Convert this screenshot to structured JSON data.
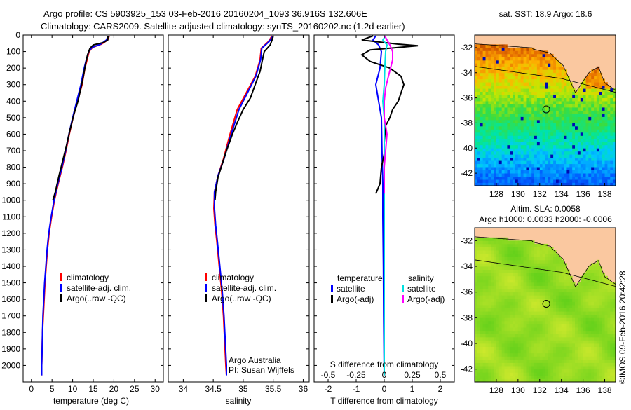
{
  "header": {
    "line1": "Argo profile: CS 5903925_153 03-Feb-2016 20160204_1093 36.916S 132.606E",
    "line2": "Climatology: CARS2009. Satellite-adjusted climatology: synTS_20160202.nc (1.2d earlier)"
  },
  "chart_data": [
    {
      "type": "line",
      "name": "temperature-profile",
      "xlabel": "temperature (deg C)",
      "xlim": [
        -2,
        32
      ],
      "xticks": [
        0,
        5,
        10,
        15,
        20,
        25,
        30
      ],
      "ylim": [
        0,
        2100
      ],
      "yticks": [
        0,
        100,
        200,
        300,
        400,
        500,
        600,
        700,
        800,
        900,
        1000,
        1100,
        1200,
        1300,
        1400,
        1500,
        1600,
        1700,
        1800,
        1900,
        2000
      ],
      "legend": [
        "climatology",
        "satellite-adj. clim.",
        "Argo(..raw -QC)"
      ],
      "colors": [
        "#ff0000",
        "#0000ff",
        "#000000"
      ],
      "series": [
        {
          "name": "climatology",
          "color": "#ff0000",
          "points": [
            [
              18.9,
              5
            ],
            [
              18.5,
              30
            ],
            [
              17.0,
              55
            ],
            [
              14.8,
              75
            ],
            [
              14.0,
              100
            ],
            [
              13.5,
              150
            ],
            [
              13.0,
              200
            ],
            [
              12.3,
              300
            ],
            [
              11.2,
              400
            ],
            [
              10.1,
              500
            ],
            [
              9.2,
              600
            ],
            [
              8.4,
              700
            ],
            [
              7.5,
              800
            ],
            [
              6.5,
              900
            ],
            [
              5.6,
              1000
            ],
            [
              4.9,
              1100
            ],
            [
              4.3,
              1200
            ],
            [
              3.9,
              1300
            ],
            [
              3.6,
              1400
            ],
            [
              3.3,
              1500
            ],
            [
              3.1,
              1600
            ],
            [
              2.9,
              1700
            ],
            [
              2.7,
              1800
            ],
            [
              2.6,
              1900
            ],
            [
              2.5,
              2000
            ],
            [
              2.5,
              2060
            ]
          ]
        },
        {
          "name": "satellite",
          "color": "#0000ff",
          "points": [
            [
              18.6,
              5
            ],
            [
              18.2,
              30
            ],
            [
              16.8,
              55
            ],
            [
              14.7,
              75
            ],
            [
              13.9,
              100
            ],
            [
              13.3,
              150
            ],
            [
              12.8,
              200
            ],
            [
              12.0,
              300
            ],
            [
              11.0,
              400
            ],
            [
              10.0,
              500
            ],
            [
              9.1,
              600
            ],
            [
              8.3,
              700
            ],
            [
              7.4,
              800
            ],
            [
              6.4,
              900
            ],
            [
              5.5,
              1000
            ],
            [
              4.8,
              1100
            ],
            [
              4.2,
              1200
            ],
            [
              3.8,
              1300
            ],
            [
              3.5,
              1400
            ],
            [
              3.2,
              1500
            ],
            [
              3.0,
              1600
            ],
            [
              2.8,
              1700
            ],
            [
              2.7,
              1800
            ],
            [
              2.6,
              1900
            ],
            [
              2.5,
              2000
            ],
            [
              2.5,
              2060
            ]
          ]
        },
        {
          "name": "argo",
          "color": "#000000",
          "points": [
            [
              18.6,
              5
            ],
            [
              18.5,
              30
            ],
            [
              17.5,
              45
            ],
            [
              15.0,
              60
            ],
            [
              14.2,
              80
            ],
            [
              13.6,
              120
            ],
            [
              13.1,
              180
            ],
            [
              12.6,
              250
            ],
            [
              12.0,
              320
            ],
            [
              11.3,
              400
            ],
            [
              10.3,
              480
            ],
            [
              9.3,
              580
            ],
            [
              8.4,
              680
            ],
            [
              7.6,
              760
            ],
            [
              6.7,
              850
            ],
            [
              5.8,
              950
            ],
            [
              5.2,
              1000
            ]
          ]
        }
      ]
    },
    {
      "type": "line",
      "name": "salinity-profile",
      "xlabel": "salinity",
      "xlim": [
        33.75,
        36.1
      ],
      "xticks": [
        34,
        34.5,
        35,
        35.5,
        36
      ],
      "ylim": [
        0,
        2100
      ],
      "legend": [
        "climatology",
        "satellite-adj. clim.",
        "Argo(..raw -QC)"
      ],
      "colors": [
        "#ff0000",
        "#0000ff",
        "#000000"
      ],
      "annotation": [
        "Argo Australia",
        "PI: Susan Wijffels"
      ],
      "series": [
        {
          "name": "climatology",
          "color": "#ff0000",
          "points": [
            [
              35.48,
              5
            ],
            [
              35.42,
              40
            ],
            [
              35.3,
              80
            ],
            [
              35.28,
              150
            ],
            [
              35.2,
              250
            ],
            [
              35.05,
              350
            ],
            [
              34.9,
              450
            ],
            [
              34.78,
              600
            ],
            [
              34.67,
              750
            ],
            [
              34.58,
              850
            ],
            [
              34.52,
              950
            ],
            [
              34.51,
              1050
            ],
            [
              34.53,
              1150
            ],
            [
              34.56,
              1250
            ],
            [
              34.6,
              1400
            ],
            [
              34.64,
              1550
            ],
            [
              34.67,
              1700
            ],
            [
              34.69,
              1850
            ],
            [
              34.71,
              2000
            ],
            [
              34.72,
              2060
            ]
          ]
        },
        {
          "name": "satellite",
          "color": "#0000ff",
          "points": [
            [
              35.5,
              5
            ],
            [
              35.43,
              40
            ],
            [
              35.31,
              80
            ],
            [
              35.29,
              150
            ],
            [
              35.21,
              250
            ],
            [
              35.07,
              350
            ],
            [
              34.93,
              450
            ],
            [
              34.8,
              600
            ],
            [
              34.68,
              750
            ],
            [
              34.58,
              850
            ],
            [
              34.52,
              950
            ],
            [
              34.52,
              1050
            ],
            [
              34.54,
              1150
            ],
            [
              34.57,
              1250
            ],
            [
              34.61,
              1400
            ],
            [
              34.65,
              1550
            ],
            [
              34.68,
              1700
            ],
            [
              34.7,
              1850
            ],
            [
              34.72,
              2000
            ],
            [
              34.72,
              2060
            ]
          ]
        },
        {
          "name": "argo",
          "color": "#000000",
          "points": [
            [
              35.5,
              5
            ],
            [
              35.48,
              30
            ],
            [
              35.45,
              60
            ],
            [
              35.35,
              100
            ],
            [
              35.32,
              150
            ],
            [
              35.28,
              220
            ],
            [
              35.2,
              300
            ],
            [
              35.12,
              380
            ],
            [
              35.0,
              450
            ],
            [
              34.9,
              530
            ],
            [
              34.82,
              600
            ],
            [
              34.72,
              700
            ],
            [
              34.65,
              780
            ],
            [
              34.58,
              860
            ],
            [
              34.54,
              950
            ],
            [
              34.53,
              1000
            ]
          ]
        }
      ]
    },
    {
      "type": "line",
      "name": "difference-profile",
      "xlabel": "T difference from climatology",
      "xlabel2": "S difference from climatology",
      "xlim": [
        -2.5,
        2.5
      ],
      "xticks": [
        -2,
        -1,
        0,
        1,
        2
      ],
      "x2ticks": [
        "-0.5",
        "-0.25",
        "0",
        "0.25",
        "0.5"
      ],
      "ylim": [
        0,
        2100
      ],
      "legend_titles": [
        "temperature",
        "salinity"
      ],
      "legend": [
        "satellite",
        "Argo(-adj)",
        "satellite",
        "Argo(-adj)"
      ],
      "colors": [
        "#0000ff",
        "#000000",
        "#00e0e0",
        "#ff00ff"
      ],
      "series": [
        {
          "name": "T satellite",
          "color": "#0000ff",
          "points": [
            [
              -0.3,
              5
            ],
            [
              -0.4,
              30
            ],
            [
              -0.2,
              60
            ],
            [
              -0.1,
              100
            ],
            [
              -0.15,
              200
            ],
            [
              -0.3,
              300
            ],
            [
              -0.2,
              400
            ],
            [
              -0.1,
              500
            ],
            [
              -0.08,
              700
            ],
            [
              -0.05,
              900
            ],
            [
              -0.05,
              1100
            ],
            [
              -0.03,
              1400
            ],
            [
              -0.02,
              1700
            ],
            [
              0,
              2060
            ]
          ]
        },
        {
          "name": "T argo",
          "color": "#000000",
          "points": [
            [
              -0.4,
              5
            ],
            [
              -0.8,
              30
            ],
            [
              0.5,
              55
            ],
            [
              1.2,
              65
            ],
            [
              -0.5,
              90
            ],
            [
              -0.8,
              120
            ],
            [
              -0.5,
              160
            ],
            [
              0.2,
              200
            ],
            [
              0.6,
              250
            ],
            [
              0.7,
              300
            ],
            [
              0.6,
              350
            ],
            [
              0.5,
              400
            ],
            [
              0.3,
              450
            ],
            [
              0.2,
              500
            ],
            [
              0.05,
              550
            ],
            [
              0,
              650
            ],
            [
              0,
              720
            ],
            [
              -0.1,
              800
            ],
            [
              -0.15,
              900
            ],
            [
              -0.3,
              960
            ]
          ]
        },
        {
          "name": "S satellite",
          "color": "#00e0e0",
          "points": [
            [
              0.05,
              5
            ],
            [
              -0.05,
              30
            ],
            [
              0.1,
              60
            ],
            [
              0.05,
              100
            ],
            [
              0.02,
              200
            ],
            [
              0.0,
              300
            ],
            [
              -0.05,
              400
            ],
            [
              0.0,
              500
            ],
            [
              0.0,
              700
            ],
            [
              0,
              1000
            ],
            [
              0,
              1500
            ],
            [
              0,
              2060
            ]
          ]
        },
        {
          "name": "S argo",
          "color": "#ff00ff",
          "points": [
            [
              0.02,
              5
            ],
            [
              0.1,
              30
            ],
            [
              0.2,
              60
            ],
            [
              0.3,
              100
            ],
            [
              0.3,
              150
            ],
            [
              0.15,
              250
            ],
            [
              0.05,
              320
            ],
            [
              0.0,
              400
            ],
            [
              0.0,
              500
            ],
            [
              0.1,
              600
            ],
            [
              0.05,
              700
            ],
            [
              0,
              800
            ],
            [
              0,
              900
            ],
            [
              0,
              960
            ]
          ]
        }
      ]
    },
    {
      "type": "heatmap",
      "name": "sst-map",
      "title": "sat. SST: 18.9  Argo: 18.6",
      "xlim": [
        126,
        139
      ],
      "ylim": [
        -43,
        -31
      ],
      "xticks": [
        128,
        130,
        132,
        134,
        136,
        138
      ],
      "yticks": [
        -32,
        -34,
        -36,
        -38,
        -40,
        -42
      ],
      "marker": [
        132.606,
        -36.916
      ]
    },
    {
      "type": "heatmap",
      "name": "sla-map",
      "title": "Altim. SLA: 0.0058",
      "subtitle": "Argo h1000: 0.0033 h2000: -0.0006",
      "xlim": [
        126,
        139
      ],
      "ylim": [
        -43,
        -31
      ],
      "xticks": [
        128,
        130,
        132,
        134,
        136,
        138
      ],
      "yticks": [
        -32,
        -34,
        -36,
        -38,
        -40,
        -42
      ],
      "marker": [
        132.606,
        -36.916
      ]
    }
  ],
  "side_label": "©IMOS 09-Feb-2016 20:42:28"
}
